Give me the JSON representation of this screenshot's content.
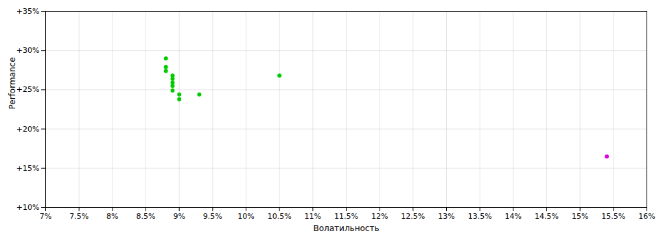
{
  "chart_data": {
    "type": "scatter",
    "xlabel": "Волатильность",
    "ylabel": "Performance",
    "grid": true,
    "xlim": [
      0.07,
      0.16
    ],
    "ylim": [
      0.1,
      0.35
    ],
    "xticks": [
      {
        "value": 0.07,
        "label": "7%"
      },
      {
        "value": 0.075,
        "label": "7.5%"
      },
      {
        "value": 0.08,
        "label": "8%"
      },
      {
        "value": 0.085,
        "label": "8.5%"
      },
      {
        "value": 0.09,
        "label": "9%"
      },
      {
        "value": 0.095,
        "label": "9.5%"
      },
      {
        "value": 0.1,
        "label": "10%"
      },
      {
        "value": 0.105,
        "label": "10.5%"
      },
      {
        "value": 0.11,
        "label": "11%"
      },
      {
        "value": 0.115,
        "label": "11.5%"
      },
      {
        "value": 0.12,
        "label": "12%"
      },
      {
        "value": 0.125,
        "label": "12.5%"
      },
      {
        "value": 0.13,
        "label": "13%"
      },
      {
        "value": 0.135,
        "label": "13.5%"
      },
      {
        "value": 0.14,
        "label": "14%"
      },
      {
        "value": 0.145,
        "label": "14.5%"
      },
      {
        "value": 0.15,
        "label": "15%"
      },
      {
        "value": 0.155,
        "label": "15.5%"
      },
      {
        "value": 0.16,
        "label": "16%"
      }
    ],
    "yticks": [
      {
        "value": 0.1,
        "label": "+10%"
      },
      {
        "value": 0.15,
        "label": "+15%"
      },
      {
        "value": 0.2,
        "label": "+20%"
      },
      {
        "value": 0.25,
        "label": "+25%"
      },
      {
        "value": 0.3,
        "label": "+30%"
      },
      {
        "value": 0.35,
        "label": "+35%"
      }
    ],
    "series": [
      {
        "color": "#00cc00",
        "x": [
          0.088,
          0.088,
          0.088,
          0.089,
          0.089,
          0.089,
          0.089,
          0.089,
          0.09,
          0.09,
          0.093,
          0.105
        ],
        "values": [
          0.29,
          0.279,
          0.274,
          0.268,
          0.264,
          0.259,
          0.255,
          0.249,
          0.244,
          0.238,
          0.244,
          0.268
        ]
      },
      {
        "color": "#dd00dd",
        "x": [
          0.154
        ],
        "values": [
          0.165
        ]
      }
    ]
  }
}
